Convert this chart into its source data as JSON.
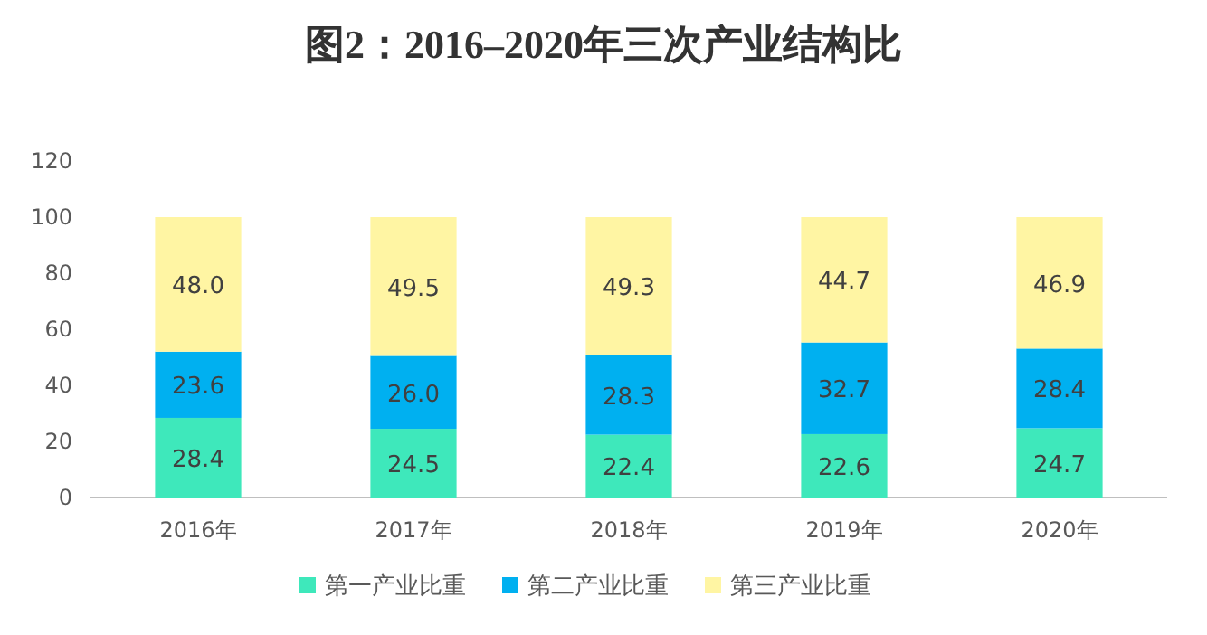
{
  "chart_data": {
    "type": "bar",
    "stacked": true,
    "title": "图2：2016–2020年三次产业结构比",
    "categories": [
      "2016年",
      "2017年",
      "2018年",
      "2019年",
      "2020年"
    ],
    "series": [
      {
        "name": "第一产业比重",
        "color": "#3ee8bb",
        "values": [
          28.4,
          24.5,
          22.4,
          22.6,
          24.7
        ],
        "value_labels": [
          "28.4",
          "24.5",
          "22.4",
          "22.6",
          "24.7"
        ]
      },
      {
        "name": "第二产业比重",
        "color": "#00b0f0",
        "values": [
          23.6,
          26.0,
          28.3,
          32.7,
          28.4
        ],
        "value_labels": [
          "23.6",
          "26.0",
          "28.3",
          "32.7",
          "28.4"
        ]
      },
      {
        "name": "第三产业比重",
        "color": "#fff5a3",
        "values": [
          48.0,
          49.5,
          49.3,
          44.7,
          46.9
        ],
        "value_labels": [
          "48.0",
          "49.5",
          "49.3",
          "44.7",
          "46.9"
        ]
      }
    ],
    "ylim": [
      0,
      120
    ],
    "yticks": [
      0,
      20,
      40,
      60,
      80,
      100,
      120
    ],
    "legend": "bottom"
  }
}
